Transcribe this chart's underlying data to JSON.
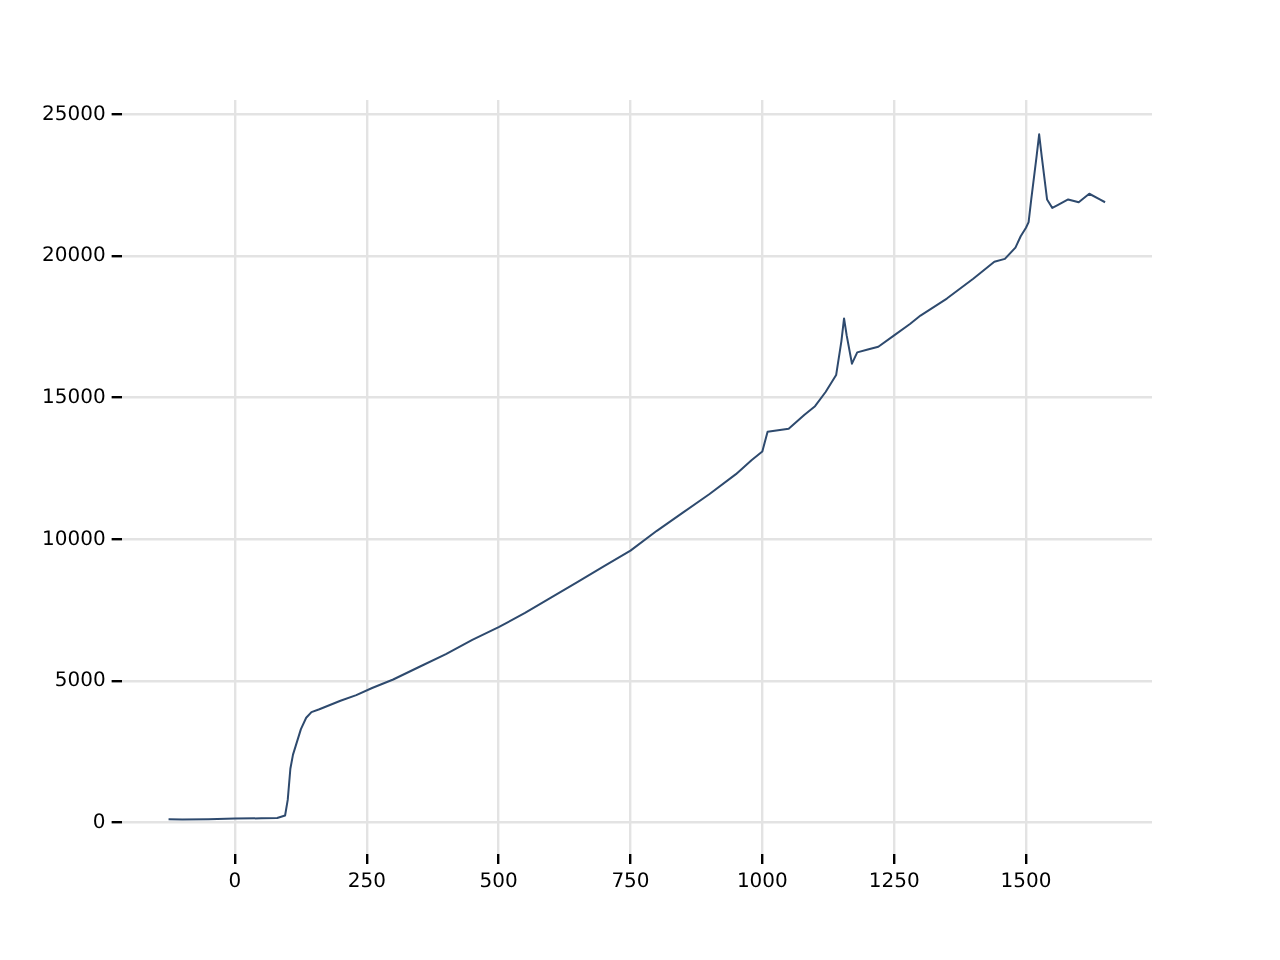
{
  "chart_data": {
    "type": "line",
    "x": [
      -126,
      -100,
      -50,
      0,
      50,
      80,
      95,
      100,
      105,
      110,
      115,
      125,
      135,
      145,
      160,
      180,
      200,
      230,
      260,
      300,
      350,
      400,
      450,
      500,
      550,
      600,
      650,
      700,
      750,
      800,
      850,
      900,
      950,
      980,
      1000,
      1010,
      1050,
      1080,
      1100,
      1120,
      1140,
      1150,
      1155,
      1160,
      1170,
      1180,
      1200,
      1220,
      1250,
      1280,
      1300,
      1350,
      1400,
      1440,
      1460,
      1480,
      1490,
      1500,
      1505,
      1510,
      1520,
      1525,
      1530,
      1540,
      1550,
      1560,
      1580,
      1600,
      1620,
      1640,
      1650
    ],
    "series": [
      {
        "color": "#2e4a6e",
        "values": [
          120,
          110,
          120,
          140,
          150,
          160,
          250,
          800,
          1900,
          2400,
          2700,
          3300,
          3700,
          3900,
          4000,
          4150,
          4300,
          4500,
          4750,
          5050,
          5500,
          5950,
          6450,
          6900,
          7400,
          7950,
          8500,
          9050,
          9600,
          10300,
          10950,
          11600,
          12300,
          12800,
          13100,
          13800,
          13900,
          14400,
          14700,
          15200,
          15800,
          17000,
          17800,
          17200,
          16200,
          16600,
          16700,
          16800,
          17200,
          17600,
          17900,
          18500,
          19200,
          19800,
          19900,
          20300,
          20700,
          21000,
          21200,
          22000,
          23500,
          24300,
          23500,
          22000,
          21700,
          21800,
          22000,
          21900,
          22200,
          22000,
          21900
        ]
      }
    ],
    "xlim": [
      -215,
      1739
    ],
    "ylim": [
      -1110,
      25510
    ],
    "xticks": [
      0,
      250,
      500,
      750,
      1000,
      1250,
      1500
    ],
    "yticks": [
      0,
      5000,
      10000,
      15000,
      20000,
      25000
    ],
    "grid": true,
    "legend": false
  }
}
